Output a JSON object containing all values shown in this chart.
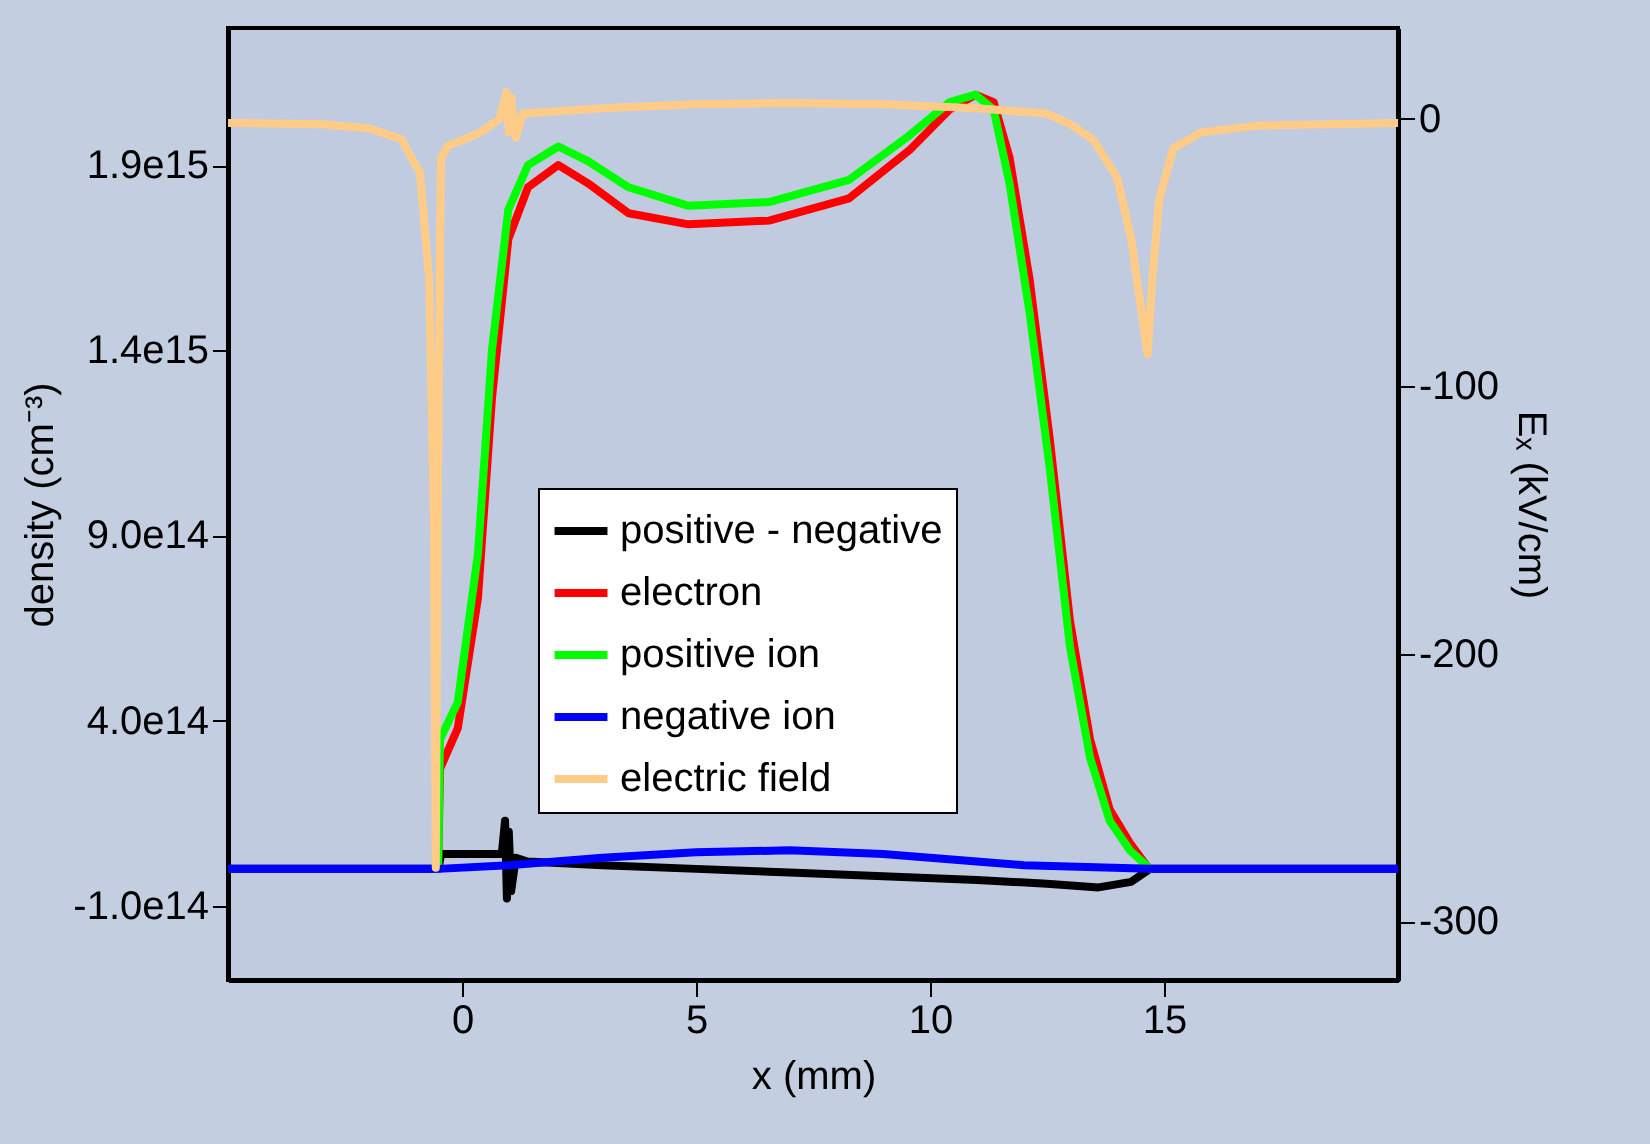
{
  "chart_data": {
    "type": "line",
    "xlabel": "x (mm)",
    "ylabel": "density (cm⁻³)",
    "y2label": "Eₓ (kV/cm)",
    "xlim": [
      -5,
      20
    ],
    "xticks": [
      0,
      5,
      10,
      15
    ],
    "ylim": [
      -300000000000000.0,
      2270000000000000.0
    ],
    "yticks": [
      {
        "value": -100000000000000.0,
        "label": "-1.0e14"
      },
      {
        "value": 400000000000000.0,
        "label": "4.0e14"
      },
      {
        "value": 900000000000000.0,
        "label": "9.0e14"
      },
      {
        "value": 1400000000000000.0,
        "label": "1.4e15"
      },
      {
        "value": 1900000000000000.0,
        "label": "1.9e15"
      }
    ],
    "y2lim": [
      -322,
      34
    ],
    "y2ticks": [
      -300,
      -200,
      -100,
      0
    ],
    "legend": "center",
    "grid": false,
    "marker": "none",
    "line_style": "solid",
    "series": [
      {
        "name": "positive - negative",
        "color": "#000000",
        "x": [
          -5,
          -0.5,
          -0.45,
          0.3,
          0.85,
          0.92,
          0.96,
          1.0,
          1.05,
          1.15,
          1.4,
          3,
          5,
          7,
          9,
          11,
          12.5,
          13.6,
          14.3,
          14.7,
          20
        ],
        "values": [
          0,
          0,
          40000000000000.0,
          40000000000000.0,
          40000000000000.0,
          130000000000000.0,
          -80000000000000.0,
          100000000000000.0,
          -60000000000000.0,
          30000000000000.0,
          20000000000000.0,
          10000000000000.0,
          0,
          -10000000000000.0,
          -20000000000000.0,
          -30000000000000.0,
          -40000000000000.0,
          -50000000000000.0,
          -35000000000000.0,
          0,
          0
        ]
      },
      {
        "name": "electron",
        "color": "#ff0000",
        "x": [
          -0.51,
          -0.47,
          -0.09,
          0.34,
          0.64,
          0.99,
          1.41,
          2.06,
          2.7,
          3.56,
          4.84,
          6.56,
          8.27,
          9.56,
          10.42,
          10.97,
          11.36,
          11.7,
          12.13,
          12.56,
          12.99,
          13.42,
          13.84,
          14.27,
          14.62,
          14.7
        ],
        "values": [
          0,
          270000000000000.0,
          380000000000000.0,
          730000000000000.0,
          1270000000000000.0,
          1700000000000000.0,
          1840000000000000.0,
          1900000000000000.0,
          1850000000000000.0,
          1770000000000000.0,
          1740000000000000.0,
          1750000000000000.0,
          1810000000000000.0,
          1940000000000000.0,
          2050000000000000.0,
          2090000000000000.0,
          2070000000000000.0,
          1920000000000000.0,
          1590000000000000.0,
          1160000000000000.0,
          670000000000000.0,
          350000000000000.0,
          160000000000000.0,
          70000000000000.0,
          10000000000000.0,
          0
        ]
      },
      {
        "name": "positive ion",
        "color": "#00ff00",
        "x": [
          -0.51,
          -0.47,
          -0.09,
          0.34,
          0.64,
          0.99,
          1.41,
          2.06,
          2.7,
          3.56,
          4.84,
          6.56,
          8.27,
          9.56,
          10.42,
          10.97,
          11.36,
          11.7,
          12.13,
          12.56,
          12.99,
          13.42,
          13.84,
          14.27,
          14.62,
          14.7
        ],
        "values": [
          0,
          350000000000000.0,
          450000000000000.0,
          850000000000000.0,
          1400000000000000.0,
          1780000000000000.0,
          1900000000000000.0,
          1950000000000000.0,
          1910000000000000.0,
          1840000000000000.0,
          1790000000000000.0,
          1800000000000000.0,
          1860000000000000.0,
          1980000000000000.0,
          2070000000000000.0,
          2090000000000000.0,
          2050000000000000.0,
          1850000000000000.0,
          1500000000000000.0,
          1080000000000000.0,
          600000000000000.0,
          300000000000000.0,
          130000000000000.0,
          50000000000000.0,
          10000000000000.0,
          0
        ]
      },
      {
        "name": "negative ion",
        "color": "#0000ff",
        "x": [
          -5,
          -0.5,
          1,
          3,
          5,
          7,
          9,
          11,
          12,
          14.7,
          20
        ],
        "values": [
          0,
          0,
          10000000000000.0,
          30000000000000.0,
          45000000000000.0,
          50000000000000.0,
          40000000000000.0,
          20000000000000.0,
          10000000000000.0,
          0,
          0
        ]
      },
      {
        "name": "electric field",
        "color": "#ffcc88",
        "axis": "y2",
        "x": [
          -5,
          -3,
          -2,
          -1.3,
          -0.9,
          -0.7,
          -0.6,
          -0.56,
          -0.52,
          -0.45,
          -0.3,
          0,
          0.4,
          0.8,
          0.95,
          1.0,
          1.05,
          1.15,
          1.3,
          3,
          5,
          7,
          9,
          11,
          12.5,
          13,
          13.5,
          14,
          14.3,
          14.5,
          14.65,
          14.75,
          14.9,
          15.2,
          15.8,
          17,
          20
        ],
        "values": [
          -1.5,
          -2,
          -3.5,
          -7.5,
          -20,
          -60,
          -150,
          -280,
          -150,
          -15,
          -10,
          -8,
          -5,
          0,
          10,
          -5,
          8,
          -7,
          2,
          4,
          5.5,
          6,
          5.5,
          4,
          2,
          -2,
          -8,
          -22,
          -45,
          -70,
          -88,
          -60,
          -30,
          -11,
          -5,
          -2.5,
          -1.5
        ]
      }
    ]
  }
}
